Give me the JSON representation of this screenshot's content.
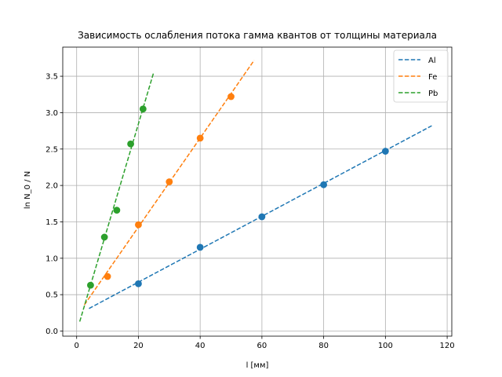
{
  "chart_data": {
    "type": "scatter",
    "title": "Зависимость ослабления потока гамма квантов от толщины материала",
    "xlabel": "l [мм]",
    "ylabel": "ln N_0 / N",
    "xlim": [
      -4.5,
      121.5
    ],
    "ylim": [
      -0.07,
      3.9
    ],
    "xticks": [
      0,
      20,
      40,
      60,
      80,
      100,
      120
    ],
    "yticks": [
      0.0,
      0.5,
      1.0,
      1.5,
      2.0,
      2.5,
      3.0,
      3.5
    ],
    "xtick_labels": [
      "0",
      "20",
      "40",
      "60",
      "80",
      "100",
      "120"
    ],
    "ytick_labels": [
      "0.0",
      "0.5",
      "1.0",
      "1.5",
      "2.0",
      "2.5",
      "3.0",
      "3.5"
    ],
    "grid": true,
    "legend_position": "top-right",
    "series": [
      {
        "name": "Al",
        "color": "#1f77b4",
        "points": [
          [
            20,
            0.65
          ],
          [
            40,
            1.15
          ],
          [
            60,
            1.57
          ],
          [
            80,
            2.01
          ],
          [
            100,
            2.47
          ]
        ],
        "fit_line": [
          [
            4,
            0.31
          ],
          [
            115,
            2.82
          ]
        ]
      },
      {
        "name": "Fe",
        "color": "#ff7f0e",
        "points": [
          [
            10,
            0.75
          ],
          [
            20,
            1.46
          ],
          [
            30,
            2.05
          ],
          [
            40,
            2.65
          ],
          [
            50,
            3.22
          ]
        ],
        "fit_line": [
          [
            2.5,
            0.36
          ],
          [
            57.5,
            3.72
          ]
        ]
      },
      {
        "name": "Pb",
        "color": "#2ca02c",
        "points": [
          [
            4.5,
            0.63
          ],
          [
            9,
            1.29
          ],
          [
            13,
            1.66
          ],
          [
            17.5,
            2.57
          ],
          [
            21.5,
            3.05
          ]
        ],
        "fit_line": [
          [
            1,
            0.13
          ],
          [
            25,
            3.56
          ]
        ]
      }
    ]
  }
}
